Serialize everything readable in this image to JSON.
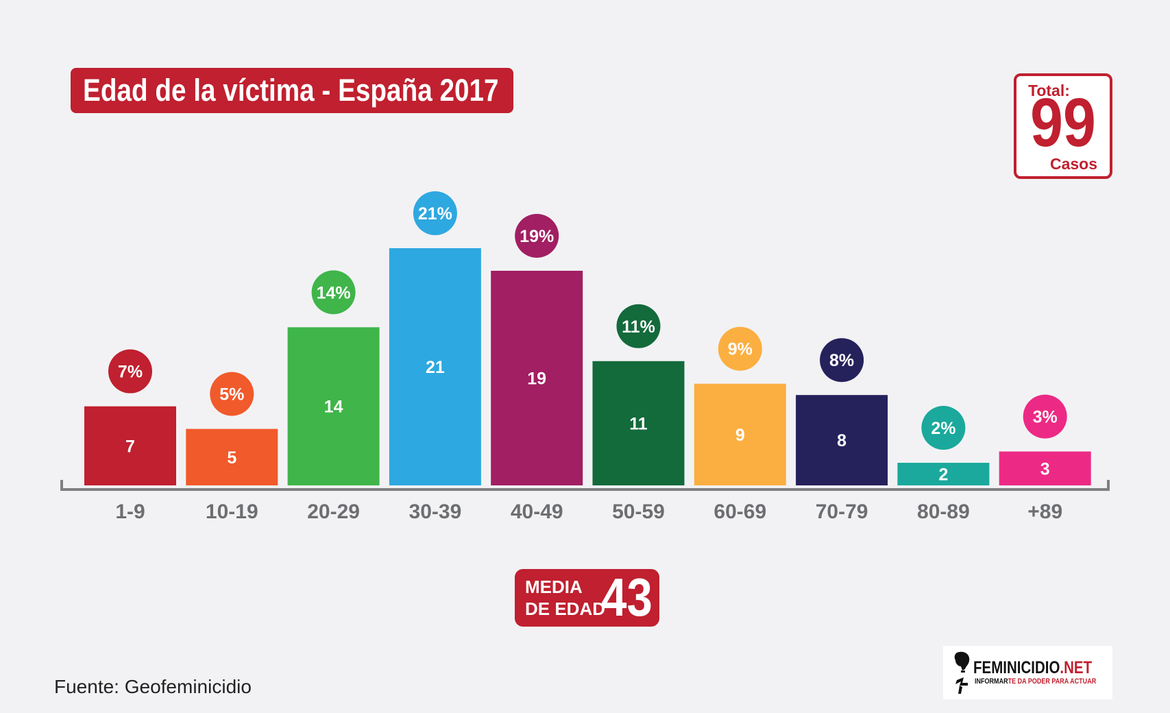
{
  "title": "Edad de la víctima - España 2017",
  "total": {
    "label": "Total:",
    "value": "99",
    "unit": "Casos"
  },
  "media": {
    "line1": "MEDIA",
    "line2": "DE EDAD",
    "value": "43"
  },
  "source": "Fuente: Geofeminicidio",
  "logo": {
    "name_main": "FEMINICIDIO",
    "name_suffix": ".NET",
    "tagline_main": "INFORMAR",
    "tagline_rest": "TE DA PODER PARA ACTUAR"
  },
  "colors": {
    "brand": "#c0202f",
    "axis": "#7f7f7f",
    "tick_label": "#6d6e71"
  },
  "chart_data": {
    "type": "bar",
    "categories": [
      "1-9",
      "10-19",
      "20-29",
      "30-39",
      "40-49",
      "50-59",
      "60-69",
      "70-79",
      "80-89",
      "+89"
    ],
    "values": [
      7,
      5,
      14,
      21,
      19,
      11,
      9,
      8,
      2,
      3
    ],
    "percent_labels": [
      "7%",
      "5%",
      "14%",
      "21%",
      "19%",
      "11%",
      "9%",
      "8%",
      "2%",
      "3%"
    ],
    "bar_colors": [
      "#c0202f",
      "#f15a2b",
      "#3fb54a",
      "#2ea8e0",
      "#a11f62",
      "#136a3b",
      "#fbaf41",
      "#25215b",
      "#1aa99c",
      "#ec2a85"
    ],
    "ylim": [
      0,
      21
    ],
    "grid": false,
    "legend": "none"
  }
}
